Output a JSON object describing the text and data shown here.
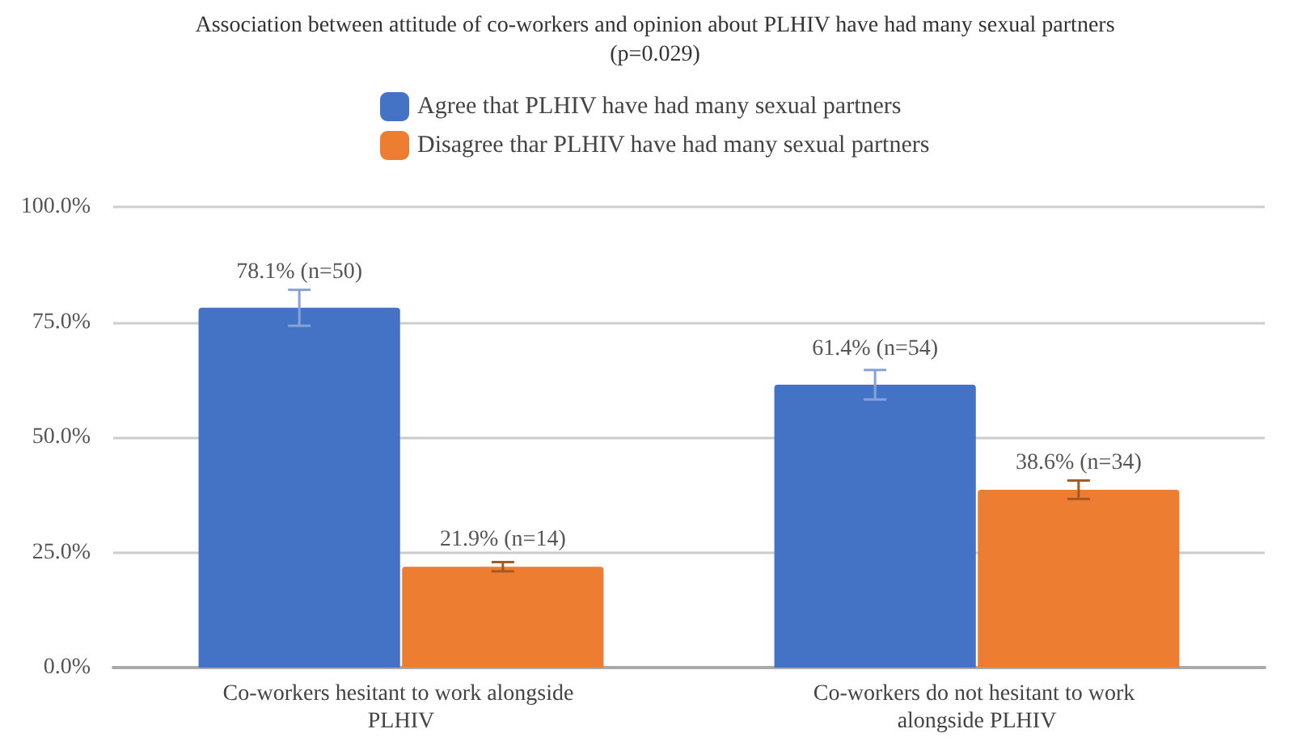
{
  "chart_data": {
    "type": "bar",
    "title": "Association between attitude of co-workers and opinion about PLHIV have had many sexual partners",
    "subtitle": "(p=0.029)",
    "categories": [
      "Co-workers hesitant to work alongside PLHIV",
      "Co-workers do not hesitant to work alongside PLHIV"
    ],
    "series": [
      {
        "name": "Agree that PLHIV have had many sexual partners",
        "color": "#4472c4",
        "values": [
          78.1,
          61.4
        ],
        "errors": [
          3.9,
          3.2
        ],
        "value_labels": [
          "78.1% (n=50)",
          "61.4% (n=54)"
        ]
      },
      {
        "name": "Disagree thar PLHIV have had many sexual partners",
        "color": "#ed7d31",
        "values": [
          21.9,
          38.6
        ],
        "errors": [
          1,
          2
        ],
        "value_labels": [
          "21.9% (n=14)",
          "38.6% (n=34)"
        ]
      }
    ],
    "ylim": [
      0,
      100
    ],
    "yticks": [
      {
        "value": 0,
        "label": "0.0%"
      },
      {
        "value": 25,
        "label": "25.0%"
      },
      {
        "value": 50,
        "label": "50.0%"
      },
      {
        "value": 75,
        "label": "75.0%"
      },
      {
        "value": 100,
        "label": "100.0%"
      }
    ],
    "grid": "y",
    "legend": "top"
  }
}
